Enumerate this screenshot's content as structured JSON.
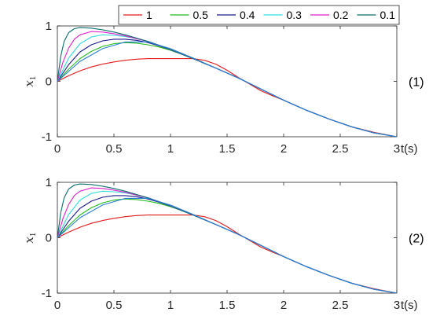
{
  "chart_data": [
    {
      "type": "line",
      "panel_label": "(1)",
      "ylabel": "x",
      "ylabel_sub": "1",
      "xlabel": "t(s)",
      "xlim": [
        0,
        3
      ],
      "ylim": [
        -1,
        1
      ],
      "xticks": [
        "0",
        "0.5",
        "1",
        "1.5",
        "2",
        "2.5",
        "3"
      ],
      "yticks": [
        "1",
        "0",
        "-1"
      ],
      "grid": false,
      "legend": "top",
      "series": [
        {
          "name": "1",
          "color": "#e41a1c",
          "x": [
            0,
            0.1,
            0.2,
            0.3,
            0.4,
            0.5,
            0.6,
            0.7,
            0.8,
            0.9,
            1.0,
            1.1,
            1.2,
            1.3,
            1.4,
            1.5,
            1.6,
            1.7,
            1.8,
            1.9,
            2.0,
            2.2,
            2.4,
            2.6,
            2.8,
            3.0
          ],
          "y": [
            0,
            0.1,
            0.19,
            0.26,
            0.31,
            0.35,
            0.38,
            0.4,
            0.41,
            0.41,
            0.41,
            0.41,
            0.41,
            0.38,
            0.31,
            0.2,
            0.07,
            -0.05,
            -0.17,
            -0.26,
            -0.34,
            -0.52,
            -0.68,
            -0.82,
            -0.92,
            -1.0
          ]
        },
        {
          "name": "0.5",
          "color": "#22bb22",
          "x": [
            0,
            0.1,
            0.2,
            0.3,
            0.4,
            0.5,
            0.6,
            0.7,
            0.8,
            0.9,
            1.0,
            1.1,
            1.2,
            1.4,
            1.6,
            1.8,
            2.0,
            2.2,
            2.4,
            2.6,
            2.8,
            3.0
          ],
          "y": [
            0,
            0.22,
            0.41,
            0.54,
            0.63,
            0.68,
            0.7,
            0.69,
            0.66,
            0.62,
            0.56,
            0.49,
            0.41,
            0.24,
            0.06,
            -0.14,
            -0.34,
            -0.52,
            -0.68,
            -0.82,
            -0.93,
            -1.0
          ]
        },
        {
          "name": "0.4",
          "color": "#1a1a8c",
          "x": [
            0,
            0.1,
            0.2,
            0.3,
            0.4,
            0.5,
            0.6,
            0.7,
            0.8,
            0.9,
            1.0,
            1.1,
            1.2,
            1.4,
            1.6,
            1.8,
            2.0,
            2.2,
            2.4,
            2.6,
            2.8,
            3.0
          ],
          "y": [
            0,
            0.3,
            0.53,
            0.66,
            0.73,
            0.76,
            0.76,
            0.74,
            0.7,
            0.64,
            0.57,
            0.49,
            0.41,
            0.24,
            0.06,
            -0.14,
            -0.34,
            -0.52,
            -0.68,
            -0.82,
            -0.93,
            -1.0
          ]
        },
        {
          "name": "0.3",
          "color": "#33dddd",
          "x": [
            0,
            0.1,
            0.2,
            0.3,
            0.4,
            0.5,
            0.6,
            0.7,
            0.8,
            0.9,
            1.0,
            1.1,
            1.2,
            1.4,
            1.6,
            1.8,
            2.0,
            2.2,
            2.4,
            2.6,
            2.8,
            3.0
          ],
          "y": [
            0,
            0.42,
            0.68,
            0.8,
            0.84,
            0.83,
            0.81,
            0.77,
            0.72,
            0.65,
            0.57,
            0.49,
            0.41,
            0.24,
            0.06,
            -0.14,
            -0.34,
            -0.52,
            -0.68,
            -0.82,
            -0.93,
            -1.0
          ]
        },
        {
          "name": "0.2",
          "color": "#dd22cc",
          "x": [
            0,
            0.05,
            0.1,
            0.15,
            0.2,
            0.3,
            0.4,
            0.5,
            0.6,
            0.7,
            0.8,
            0.9,
            1.0,
            1.1,
            1.2,
            1.4,
            1.6,
            1.8,
            2.0,
            2.2,
            2.4,
            2.6,
            2.8,
            3.0
          ],
          "y": [
            0,
            0.35,
            0.6,
            0.76,
            0.84,
            0.9,
            0.89,
            0.86,
            0.82,
            0.77,
            0.72,
            0.65,
            0.57,
            0.49,
            0.41,
            0.24,
            0.06,
            -0.14,
            -0.34,
            -0.52,
            -0.68,
            -0.82,
            -0.93,
            -1.0
          ]
        },
        {
          "name": "0.1",
          "color": "#0b6e6e",
          "x": [
            0,
            0.03,
            0.06,
            0.1,
            0.15,
            0.2,
            0.3,
            0.4,
            0.5,
            0.6,
            0.7,
            0.8,
            0.9,
            1.0,
            1.1,
            1.2,
            1.4,
            1.6,
            1.8,
            2.0,
            2.2,
            2.4,
            2.6,
            2.8,
            3.0
          ],
          "y": [
            0,
            0.45,
            0.72,
            0.88,
            0.95,
            0.97,
            0.96,
            0.93,
            0.89,
            0.84,
            0.78,
            0.72,
            0.65,
            0.57,
            0.49,
            0.41,
            0.24,
            0.06,
            -0.14,
            -0.34,
            -0.52,
            -0.68,
            -0.82,
            -0.93,
            -1.0
          ]
        },
        {
          "name": "",
          "color": "#2a7dd4",
          "x": [
            0,
            0.2,
            0.4,
            0.6,
            0.8,
            1.0,
            1.2,
            1.4,
            1.6,
            1.8,
            2.0,
            2.2,
            2.4,
            2.6,
            2.8,
            3.0
          ],
          "y": [
            0,
            0.36,
            0.59,
            0.71,
            0.71,
            0.59,
            0.42,
            0.24,
            0.06,
            -0.14,
            -0.34,
            -0.52,
            -0.68,
            -0.82,
            -0.93,
            -1.0
          ]
        }
      ]
    },
    {
      "type": "line",
      "panel_label": "(2)",
      "ylabel": "x",
      "ylabel_sub": "1",
      "xlabel": "t(s)",
      "xlim": [
        0,
        3
      ],
      "ylim": [
        -1,
        1
      ],
      "xticks": [
        "0",
        "0.5",
        "1",
        "1.5",
        "2",
        "2.5",
        "3"
      ],
      "yticks": [
        "1",
        "0",
        "-1"
      ],
      "grid": false,
      "series": [
        {
          "name": "1",
          "color": "#e41a1c",
          "x": [
            0,
            0.1,
            0.2,
            0.3,
            0.4,
            0.5,
            0.6,
            0.7,
            0.8,
            0.9,
            1.0,
            1.1,
            1.2,
            1.3,
            1.4,
            1.5,
            1.6,
            1.7,
            1.8,
            1.9,
            2.0,
            2.2,
            2.4,
            2.6,
            2.8,
            3.0
          ],
          "y": [
            0,
            0.1,
            0.19,
            0.26,
            0.31,
            0.35,
            0.38,
            0.4,
            0.41,
            0.41,
            0.41,
            0.41,
            0.41,
            0.38,
            0.31,
            0.2,
            0.07,
            -0.05,
            -0.17,
            -0.26,
            -0.34,
            -0.52,
            -0.68,
            -0.82,
            -0.92,
            -1.0
          ]
        },
        {
          "name": "0.5",
          "color": "#22bb22",
          "x": [
            0,
            0.1,
            0.2,
            0.3,
            0.4,
            0.5,
            0.6,
            0.7,
            0.8,
            0.9,
            1.0,
            1.1,
            1.2,
            1.4,
            1.6,
            1.8,
            2.0,
            2.2,
            2.4,
            2.6,
            2.8,
            3.0
          ],
          "y": [
            0,
            0.22,
            0.41,
            0.54,
            0.63,
            0.68,
            0.7,
            0.69,
            0.66,
            0.62,
            0.56,
            0.49,
            0.41,
            0.24,
            0.06,
            -0.14,
            -0.34,
            -0.52,
            -0.68,
            -0.82,
            -0.93,
            -1.0
          ]
        },
        {
          "name": "0.4",
          "color": "#1a1a8c",
          "x": [
            0,
            0.1,
            0.2,
            0.3,
            0.4,
            0.5,
            0.6,
            0.7,
            0.8,
            0.9,
            1.0,
            1.1,
            1.2,
            1.4,
            1.6,
            1.8,
            2.0,
            2.2,
            2.4,
            2.6,
            2.8,
            3.0
          ],
          "y": [
            0,
            0.3,
            0.53,
            0.66,
            0.73,
            0.76,
            0.76,
            0.74,
            0.7,
            0.64,
            0.57,
            0.49,
            0.41,
            0.24,
            0.06,
            -0.14,
            -0.34,
            -0.52,
            -0.68,
            -0.82,
            -0.93,
            -1.0
          ]
        },
        {
          "name": "0.3",
          "color": "#33dddd",
          "x": [
            0,
            0.1,
            0.2,
            0.3,
            0.4,
            0.5,
            0.6,
            0.7,
            0.8,
            0.9,
            1.0,
            1.1,
            1.2,
            1.4,
            1.6,
            1.8,
            2.0,
            2.2,
            2.4,
            2.6,
            2.8,
            3.0
          ],
          "y": [
            0,
            0.42,
            0.68,
            0.8,
            0.84,
            0.83,
            0.81,
            0.77,
            0.72,
            0.65,
            0.57,
            0.49,
            0.41,
            0.24,
            0.06,
            -0.14,
            -0.34,
            -0.52,
            -0.68,
            -0.82,
            -0.93,
            -1.0
          ]
        },
        {
          "name": "0.2",
          "color": "#dd22cc",
          "x": [
            0,
            0.05,
            0.1,
            0.15,
            0.2,
            0.3,
            0.4,
            0.5,
            0.6,
            0.7,
            0.8,
            0.9,
            1.0,
            1.1,
            1.2,
            1.4,
            1.6,
            1.8,
            2.0,
            2.2,
            2.4,
            2.6,
            2.8,
            3.0
          ],
          "y": [
            0,
            0.35,
            0.6,
            0.76,
            0.84,
            0.9,
            0.89,
            0.86,
            0.82,
            0.77,
            0.72,
            0.65,
            0.57,
            0.49,
            0.41,
            0.24,
            0.06,
            -0.14,
            -0.34,
            -0.52,
            -0.68,
            -0.82,
            -0.93,
            -1.0
          ]
        },
        {
          "name": "0.1",
          "color": "#0b6e6e",
          "x": [
            0,
            0.03,
            0.06,
            0.1,
            0.15,
            0.2,
            0.3,
            0.4,
            0.5,
            0.6,
            0.7,
            0.8,
            0.9,
            1.0,
            1.1,
            1.2,
            1.4,
            1.6,
            1.8,
            2.0,
            2.2,
            2.4,
            2.6,
            2.8,
            3.0
          ],
          "y": [
            0,
            0.45,
            0.72,
            0.88,
            0.95,
            0.97,
            0.96,
            0.93,
            0.89,
            0.84,
            0.78,
            0.72,
            0.65,
            0.57,
            0.49,
            0.41,
            0.24,
            0.06,
            -0.14,
            -0.34,
            -0.52,
            -0.68,
            -0.82,
            -0.93,
            -1.0
          ]
        },
        {
          "name": "",
          "color": "#2a7dd4",
          "x": [
            0,
            0.2,
            0.4,
            0.6,
            0.8,
            1.0,
            1.2,
            1.4,
            1.6,
            1.8,
            2.0,
            2.2,
            2.4,
            2.6,
            2.8,
            3.0
          ],
          "y": [
            0,
            0.36,
            0.59,
            0.71,
            0.71,
            0.59,
            0.42,
            0.24,
            0.06,
            -0.14,
            -0.34,
            -0.52,
            -0.68,
            -0.82,
            -0.93,
            -1.0
          ]
        }
      ]
    }
  ]
}
